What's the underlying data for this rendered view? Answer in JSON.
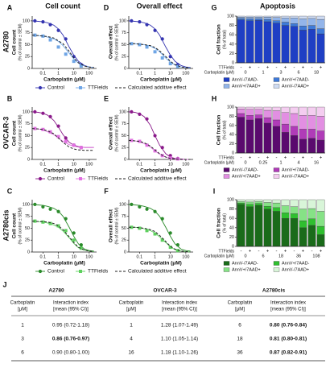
{
  "column_headers": [
    "Cell count",
    "Overall effect",
    "Apoptosis"
  ],
  "row_labels": [
    "A2780",
    "OVCAR-3",
    "A2780cis"
  ],
  "chart_data": [
    {
      "type": "line",
      "label": "A",
      "ylabel": [
        "Cell count",
        "(% of control ± SEM)"
      ],
      "xlabel": "Carboplatin (μM)",
      "xscale": "log",
      "xlim": [
        0.02,
        300
      ],
      "ylim": [
        0,
        110
      ],
      "xticks": [
        0.1,
        1,
        10,
        100
      ],
      "yticks": [
        0,
        25,
        50,
        75,
        100
      ],
      "x": [
        0.03,
        0.1,
        0.3,
        1,
        3,
        10,
        30
      ],
      "fit_x": [
        0.02,
        0.05,
        0.1,
        0.2,
        0.5,
        1,
        2,
        5,
        10,
        20,
        50,
        100,
        200
      ],
      "series": [
        {
          "name": "Control",
          "color": "#3434b0",
          "marker": "circle",
          "values": [
            100,
            98,
            92,
            80,
            62,
            25,
            8
          ],
          "fit": [
            100,
            99,
            98,
            96,
            91,
            83,
            70,
            45,
            28,
            15,
            6,
            3,
            2
          ]
        },
        {
          "name": "TTFields",
          "color": "#6fa6e6",
          "marker": "square",
          "values": [
            70,
            68,
            60,
            45,
            30,
            15,
            5
          ],
          "fit": [
            70,
            69,
            68,
            66,
            62,
            57,
            48,
            32,
            20,
            11,
            5,
            3,
            2
          ]
        },
        {
          "name": "Calculated additive effect",
          "color": "#222222",
          "dashed": true,
          "fit": [
            70,
            69,
            68,
            67,
            64,
            58,
            52,
            36,
            22,
            12,
            5,
            3,
            2
          ]
        }
      ]
    },
    {
      "type": "line",
      "label": "D",
      "ylabel": [
        "Overall effect",
        "(% of control ± SEM)"
      ],
      "xlabel": "Carboplatin (μM)",
      "xscale": "log",
      "xlim": [
        0.02,
        300
      ],
      "ylim": [
        0,
        110
      ],
      "xticks": [
        0.1,
        1,
        10,
        100
      ],
      "yticks": [
        0,
        25,
        50,
        75,
        100
      ],
      "x": [
        0.03,
        0.1,
        0.3,
        1,
        3,
        10,
        30
      ],
      "fit_x": [
        0.02,
        0.05,
        0.1,
        0.2,
        0.5,
        1,
        2,
        5,
        10,
        20,
        50,
        100,
        200
      ],
      "series": [
        {
          "color": "#3434b0",
          "marker": "circle",
          "values": [
            100,
            98,
            92,
            80,
            62,
            25,
            8
          ],
          "fit": [
            100,
            99,
            98,
            96,
            91,
            83,
            70,
            45,
            28,
            15,
            6,
            3,
            2
          ]
        },
        {
          "color": "#6fa6e6",
          "marker": "square",
          "values": [
            52,
            50,
            45,
            35,
            22,
            10,
            4
          ],
          "fit": [
            52,
            52,
            51,
            50,
            47,
            42,
            35,
            22,
            13,
            7,
            3,
            2,
            1
          ]
        },
        {
          "color": "#222222",
          "dashed": true,
          "fit": [
            52,
            52,
            51,
            50,
            48,
            44,
            37,
            25,
            15,
            8,
            3,
            2,
            1
          ]
        }
      ]
    },
    {
      "type": "bar",
      "label": "G",
      "ylabel": [
        "Cell fraction",
        "(% of total)"
      ],
      "ylim": [
        0,
        100
      ],
      "yticks": [
        0,
        20,
        40,
        60,
        80,
        100
      ],
      "ttfields_label": "TTFields",
      "ttfields": [
        "-",
        "+",
        "-",
        "+",
        "-",
        "+",
        "-",
        "+",
        "-",
        "+"
      ],
      "dose_label": "Carboplatin (μM)",
      "doses": [
        0,
        1,
        3,
        6,
        18
      ],
      "series": [
        {
          "name": "AnnV-/7AAD-",
          "color": "#1f3fc4",
          "values": [
            92,
            90,
            91,
            88,
            85,
            80,
            78,
            70,
            72,
            62
          ]
        },
        {
          "name": "AnnV+/7AAD-",
          "color": "#3f7ad8",
          "values": [
            3,
            4,
            3,
            5,
            5,
            7,
            6,
            9,
            8,
            11
          ]
        },
        {
          "name": "AnnV+/7AAD+",
          "color": "#93b5ea",
          "values": [
            3,
            4,
            4,
            5,
            7,
            9,
            12,
            15,
            15,
            20
          ]
        },
        {
          "name": "AnnV-/7AAD+",
          "color": "#cfdcf3",
          "values": [
            2,
            2,
            2,
            2,
            3,
            4,
            4,
            6,
            5,
            7
          ]
        }
      ]
    },
    {
      "type": "line",
      "label": "B",
      "ylabel": [
        "Cell count",
        "(% of control ± SEM)"
      ],
      "xlabel": "Carboplatin (μM)",
      "xscale": "log",
      "xlim": [
        0.02,
        300
      ],
      "ylim": [
        0,
        110
      ],
      "xticks": [
        0.1,
        1,
        10,
        100
      ],
      "yticks": [
        0,
        25,
        50,
        75,
        100
      ],
      "x": [
        0.03,
        0.1,
        0.3,
        1,
        3,
        10,
        30
      ],
      "fit_x": [
        0.02,
        0.05,
        0.1,
        0.2,
        0.5,
        1,
        2,
        5,
        10,
        20,
        50,
        100,
        200
      ],
      "series": [
        {
          "name": "Control",
          "color": "#8a1a8a",
          "marker": "circle",
          "values": [
            100,
            97,
            90,
            70,
            45,
            30,
            25
          ],
          "fit": [
            100,
            99,
            97,
            93,
            82,
            68,
            52,
            36,
            30,
            27,
            25,
            25,
            25
          ]
        },
        {
          "name": "TTFields",
          "color": "#e070e0",
          "marker": "square",
          "values": [
            65,
            63,
            58,
            48,
            38,
            30,
            25
          ],
          "fit": [
            65,
            64,
            62,
            58,
            52,
            45,
            38,
            31,
            28,
            26,
            25,
            25,
            25
          ]
        },
        {
          "name": "Calculated additive effect",
          "color": "#222222",
          "dashed": true,
          "fit": [
            65,
            64,
            63,
            60,
            54,
            45,
            36,
            26,
            22,
            20,
            19,
            19,
            19
          ]
        }
      ]
    },
    {
      "type": "line",
      "label": "E",
      "ylabel": [
        "Overall effect",
        "(% of control ± SEM)"
      ],
      "xlabel": "Carboplatin (μM)",
      "xscale": "log",
      "xlim": [
        0.02,
        300
      ],
      "ylim": [
        0,
        110
      ],
      "xticks": [
        0.1,
        1,
        10,
        100
      ],
      "yticks": [
        0,
        25,
        50,
        75,
        100
      ],
      "x": [
        0.03,
        0.1,
        0.3,
        1,
        3,
        10,
        30
      ],
      "fit_x": [
        0.02,
        0.05,
        0.1,
        0.2,
        0.5,
        1,
        2,
        5,
        10,
        20,
        50,
        100,
        200
      ],
      "series": [
        {
          "color": "#8a1a8a",
          "marker": "circle",
          "values": [
            100,
            95,
            85,
            50,
            25,
            8,
            2
          ],
          "fit": [
            100,
            99,
            96,
            90,
            72,
            50,
            30,
            12,
            5,
            2,
            1,
            0,
            0
          ]
        },
        {
          "color": "#e070e0",
          "marker": "square",
          "values": [
            40,
            38,
            30,
            18,
            8,
            3,
            1
          ],
          "fit": [
            40,
            39,
            37,
            33,
            26,
            18,
            11,
            5,
            2,
            1,
            0,
            0,
            0
          ]
        },
        {
          "color": "#222222",
          "dashed": true,
          "fit": [
            40,
            39,
            38,
            35,
            28,
            20,
            12,
            5,
            2,
            1,
            0,
            0,
            0
          ]
        }
      ]
    },
    {
      "type": "bar",
      "label": "H",
      "ylabel": [
        "Cell fraction",
        "(% of total)"
      ],
      "ylim": [
        0,
        100
      ],
      "yticks": [
        0,
        20,
        40,
        60,
        80,
        100
      ],
      "ttfields_label": "TTFields",
      "ttfields": [
        "-",
        "+",
        "-",
        "+",
        "-",
        "+",
        "-",
        "+",
        "-",
        "+"
      ],
      "dose_label": "Carboplatin (μM)",
      "doses": [
        0,
        0.25,
        1,
        4,
        16
      ],
      "series": [
        {
          "name": "AnnV-/7AAD-",
          "color": "#5a0a6e",
          "values": [
            78,
            72,
            75,
            65,
            58,
            45,
            38,
            30,
            32,
            28
          ]
        },
        {
          "name": "AnnV+/7AAD-",
          "color": "#b03cb8",
          "values": [
            8,
            10,
            8,
            12,
            14,
            18,
            20,
            22,
            20,
            20
          ]
        },
        {
          "name": "AnnV+/7AAD+",
          "color": "#e28fe2",
          "values": [
            10,
            13,
            12,
            16,
            20,
            25,
            28,
            30,
            30,
            32
          ]
        },
        {
          "name": "AnnV-/7AAD+",
          "color": "#f4cdf0",
          "values": [
            4,
            5,
            5,
            7,
            8,
            12,
            14,
            18,
            18,
            20
          ]
        }
      ]
    },
    {
      "type": "line",
      "label": "C",
      "ylabel": [
        "Cell count",
        "(% of control ± SEM)"
      ],
      "xlabel": "Carboplatin (μM)",
      "xscale": "log",
      "xlim": [
        0.02,
        300
      ],
      "ylim": [
        0,
        110
      ],
      "xticks": [
        0.1,
        1,
        10,
        100
      ],
      "yticks": [
        0,
        25,
        50,
        75,
        100
      ],
      "x": [
        0.03,
        0.1,
        0.3,
        1,
        3,
        10,
        30
      ],
      "fit_x": [
        0.02,
        0.05,
        0.1,
        0.2,
        0.5,
        1,
        2,
        5,
        10,
        20,
        50,
        100,
        200
      ],
      "series": [
        {
          "name": "Control",
          "color": "#2a8a2a",
          "marker": "circle",
          "values": [
            100,
            95,
            90,
            85,
            70,
            40,
            15
          ],
          "fit": [
            100,
            99,
            98,
            96,
            92,
            86,
            75,
            52,
            33,
            17,
            6,
            3,
            2
          ]
        },
        {
          "name": "TTFields",
          "color": "#5ed05e",
          "marker": "square",
          "values": [
            65,
            63,
            60,
            55,
            45,
            25,
            8
          ],
          "fit": [
            65,
            64,
            63,
            61,
            57,
            52,
            44,
            30,
            18,
            9,
            4,
            2,
            1
          ]
        },
        {
          "name": "Calculated additive effect",
          "color": "#222222",
          "dashed": true,
          "fit": [
            65,
            64,
            64,
            63,
            60,
            55,
            47,
            32,
            20,
            10,
            4,
            2,
            1
          ]
        }
      ]
    },
    {
      "type": "line",
      "label": "F",
      "ylabel": [
        "Overall effect",
        "(% of control ± SEM)"
      ],
      "xlabel": "Carboplatin (μM)",
      "xscale": "log",
      "xlim": [
        0.02,
        300
      ],
      "ylim": [
        0,
        110
      ],
      "xticks": [
        0.1,
        1,
        10,
        100
      ],
      "yticks": [
        0,
        25,
        50,
        75,
        100
      ],
      "x": [
        0.03,
        0.1,
        0.3,
        1,
        3,
        10,
        30
      ],
      "fit_x": [
        0.02,
        0.05,
        0.1,
        0.2,
        0.5,
        1,
        2,
        5,
        10,
        20,
        50,
        100,
        200
      ],
      "series": [
        {
          "color": "#2a8a2a",
          "marker": "circle",
          "values": [
            100,
            95,
            90,
            85,
            70,
            40,
            15
          ],
          "fit": [
            100,
            99,
            98,
            96,
            92,
            86,
            75,
            52,
            33,
            17,
            6,
            3,
            2
          ]
        },
        {
          "color": "#5ed05e",
          "marker": "square",
          "values": [
            52,
            50,
            45,
            38,
            25,
            10,
            3
          ],
          "fit": [
            52,
            52,
            51,
            49,
            45,
            40,
            32,
            20,
            11,
            5,
            2,
            1,
            0
          ]
        },
        {
          "color": "#222222",
          "dashed": true,
          "fit": [
            52,
            52,
            51,
            50,
            47,
            43,
            35,
            22,
            12,
            6,
            2,
            1,
            0
          ]
        }
      ]
    },
    {
      "type": "bar",
      "label": "I",
      "ylabel": [
        "Cell fraction",
        "(% of total)"
      ],
      "ylim": [
        0,
        100
      ],
      "yticks": [
        0,
        20,
        40,
        60,
        80,
        100
      ],
      "ttfields_label": "TTFields",
      "ttfields": [
        "-",
        "+",
        "-",
        "+",
        "-",
        "+",
        "-",
        "+",
        "-",
        "+"
      ],
      "dose_label": "Carboplatin (μM)",
      "doses": [
        0,
        6,
        18,
        36,
        108
      ],
      "series": [
        {
          "name": "AnnV-/7AAD-",
          "color": "#1a6b1a",
          "values": [
            90,
            85,
            88,
            80,
            75,
            60,
            60,
            40,
            45,
            25
          ]
        },
        {
          "name": "AnnV+/7AAD-",
          "color": "#2fbf2f",
          "values": [
            3,
            5,
            4,
            6,
            8,
            12,
            10,
            15,
            14,
            18
          ]
        },
        {
          "name": "AnnV+/7AAD+",
          "color": "#86e286",
          "values": [
            3,
            5,
            4,
            8,
            10,
            15,
            15,
            25,
            22,
            32
          ]
        },
        {
          "name": "AnnV-/7AAD+",
          "color": "#d8f5d8",
          "values": [
            4,
            5,
            4,
            6,
            7,
            13,
            15,
            20,
            19,
            25
          ]
        }
      ]
    }
  ],
  "table": {
    "label": "J",
    "dose_header": [
      "Carboplatin",
      "[μM]"
    ],
    "index_header": [
      "Interaction index",
      "[mean (95% CI)]"
    ],
    "groups": [
      {
        "name": "A2780",
        "rows": [
          [
            1,
            "0.95 (0.72-1.18)"
          ],
          [
            3,
            "0.86 (0.76-0.97)"
          ],
          [
            6,
            "0.90 (0.80-1.00)"
          ]
        ],
        "bold": [
          false,
          true,
          false
        ]
      },
      {
        "name": "OVCAR-3",
        "rows": [
          [
            1,
            "1.28 (1.07-1.49)"
          ],
          [
            4,
            "1.10 (1.05-1.14)"
          ],
          [
            16,
            "1.18 (1.10-1.26)"
          ]
        ],
        "bold": [
          false,
          false,
          false
        ]
      },
      {
        "name": "A2780cis",
        "rows": [
          [
            6,
            "0.80 (0.76-0.84)"
          ],
          [
            18,
            "0.81 (0.80-0.81)"
          ],
          [
            36,
            "0.87 (0.82-0.91)"
          ]
        ],
        "bold": [
          true,
          true,
          true
        ]
      }
    ]
  }
}
